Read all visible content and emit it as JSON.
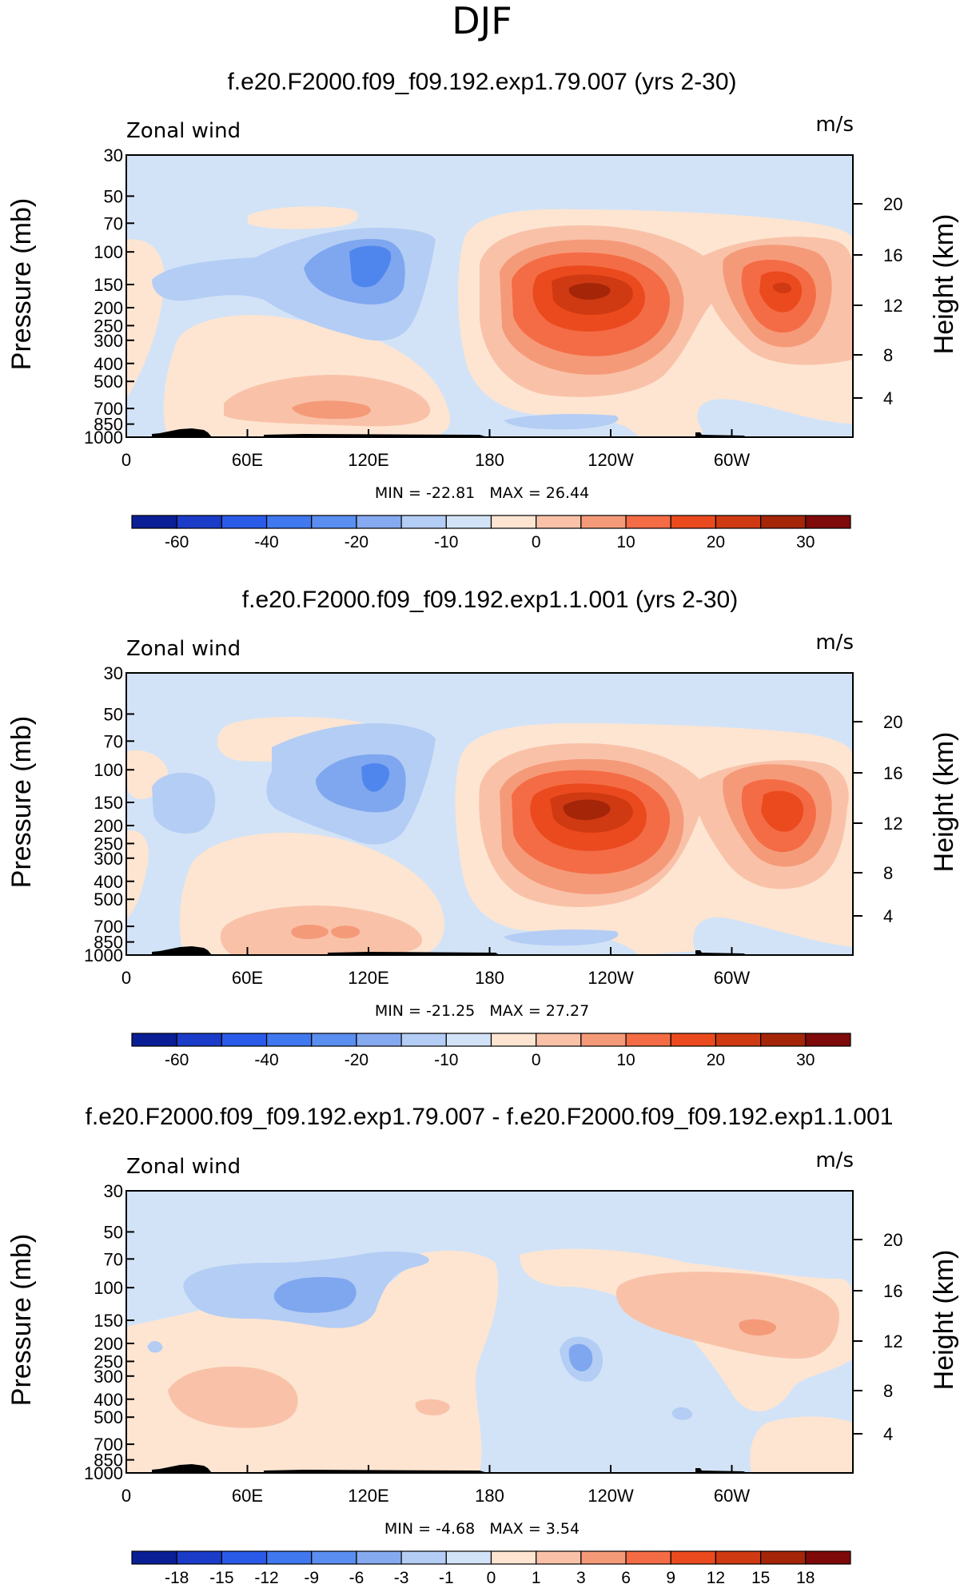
{
  "page_title": "DJF",
  "colors": {
    "blue3": "#b4cdf5",
    "blue4": "#7fa7ef",
    "blue5": "#4f86ee",
    "orange1": "#fde5d2",
    "orange2": "#f9c2a8",
    "orange3": "#f59a79",
    "orange4": "#f46c45",
    "orange5": "#eb4a1e",
    "red6": "#cf3a12",
    "red7": "#a52509",
    "background": "#d2e3f7",
    "topography": "#000000"
  },
  "chart_data": [
    {
      "type": "contour",
      "title": "f.e20.F2000.f09_f09.192.exp1.79.007 (yrs 2-30)",
      "variable_label": "Zonal wind",
      "units_label": "m/s",
      "ylabel_left": "Pressure (mb)",
      "ylabel_right": "Height (km)",
      "x_ticks": [
        "0",
        "60E",
        "120E",
        "180",
        "120W",
        "60W"
      ],
      "x_tick_values": [
        0,
        60,
        120,
        180,
        240,
        300
      ],
      "xlim": [
        0,
        360
      ],
      "y_ticks_pressure": [
        "30",
        "50",
        "70",
        "100",
        "150",
        "200",
        "250",
        "300",
        "400",
        "500",
        "700",
        "850",
        "1000"
      ],
      "y_tick_values_pressure": [
        30,
        50,
        70,
        100,
        150,
        200,
        250,
        300,
        400,
        500,
        700,
        850,
        1000
      ],
      "ylim_pressure": [
        1000,
        30
      ],
      "y_ticks_height": [
        "20",
        "16",
        "12",
        "8",
        "4"
      ],
      "min_max_text": "MIN = -22.81   MAX = 26.44",
      "colorbar_labels": [
        "-60",
        "-40",
        "-20",
        "-10",
        "0",
        "10",
        "20",
        "30"
      ],
      "colorbar_label_positions": [
        1,
        3,
        5,
        7,
        9,
        11,
        13,
        15
      ],
      "colorbar_colors": [
        "#0a1e96",
        "#1a3cc8",
        "#2a5be8",
        "#3f78ef",
        "#5a8ef0",
        "#86aaf0",
        "#b4cdf5",
        "#d2e3f7",
        "#fde5d2",
        "#f9c2a8",
        "#f59a79",
        "#f46c45",
        "#eb4a1e",
        "#cf3a12",
        "#a52509",
        "#7e0a0a"
      ]
    },
    {
      "type": "contour",
      "title": "f.e20.F2000.f09_f09.192.exp1.1.001 (yrs 2-30)",
      "variable_label": "Zonal wind",
      "units_label": "m/s",
      "ylabel_left": "Pressure (mb)",
      "ylabel_right": "Height (km)",
      "x_ticks": [
        "0",
        "60E",
        "120E",
        "180",
        "120W",
        "60W"
      ],
      "x_tick_values": [
        0,
        60,
        120,
        180,
        240,
        300
      ],
      "xlim": [
        0,
        360
      ],
      "y_ticks_pressure": [
        "30",
        "50",
        "70",
        "100",
        "150",
        "200",
        "250",
        "300",
        "400",
        "500",
        "700",
        "850",
        "1000"
      ],
      "y_tick_values_pressure": [
        30,
        50,
        70,
        100,
        150,
        200,
        250,
        300,
        400,
        500,
        700,
        850,
        1000
      ],
      "ylim_pressure": [
        1000,
        30
      ],
      "y_ticks_height": [
        "20",
        "16",
        "12",
        "8",
        "4"
      ],
      "min_max_text": "MIN = -21.25   MAX = 27.27",
      "colorbar_labels": [
        "-60",
        "-40",
        "-20",
        "-10",
        "0",
        "10",
        "20",
        "30"
      ],
      "colorbar_label_positions": [
        1,
        3,
        5,
        7,
        9,
        11,
        13,
        15
      ],
      "colorbar_colors": [
        "#0a1e96",
        "#1a3cc8",
        "#2a5be8",
        "#3f78ef",
        "#5a8ef0",
        "#86aaf0",
        "#b4cdf5",
        "#d2e3f7",
        "#fde5d2",
        "#f9c2a8",
        "#f59a79",
        "#f46c45",
        "#eb4a1e",
        "#cf3a12",
        "#a52509",
        "#7e0a0a"
      ]
    },
    {
      "type": "contour",
      "title": "f.e20.F2000.f09_f09.192.exp1.79.007 - f.e20.F2000.f09_f09.192.exp1.1.001",
      "variable_label": "Zonal wind",
      "units_label": "m/s",
      "ylabel_left": "Pressure (mb)",
      "ylabel_right": "Height (km)",
      "x_ticks": [
        "0",
        "60E",
        "120E",
        "180",
        "120W",
        "60W"
      ],
      "x_tick_values": [
        0,
        60,
        120,
        180,
        240,
        300
      ],
      "xlim": [
        0,
        360
      ],
      "y_ticks_pressure": [
        "30",
        "50",
        "70",
        "100",
        "150",
        "200",
        "250",
        "300",
        "400",
        "500",
        "700",
        "850",
        "1000"
      ],
      "y_tick_values_pressure": [
        30,
        50,
        70,
        100,
        150,
        200,
        250,
        300,
        400,
        500,
        700,
        850,
        1000
      ],
      "ylim_pressure": [
        1000,
        30
      ],
      "y_ticks_height": [
        "20",
        "16",
        "12",
        "8",
        "4"
      ],
      "min_max_text": "MIN = -4.68   MAX = 3.54",
      "colorbar_labels": [
        "-18",
        "-15",
        "-12",
        "-9",
        "-6",
        "-3",
        "-1",
        "0",
        "1",
        "3",
        "6",
        "9",
        "12",
        "15",
        "18"
      ],
      "colorbar_label_positions": [
        1,
        2,
        3,
        4,
        5,
        6,
        7,
        8,
        9,
        10,
        11,
        12,
        13,
        14,
        15
      ],
      "colorbar_colors": [
        "#0a1e96",
        "#1a3cc8",
        "#2a5be8",
        "#3f78ef",
        "#5a8ef0",
        "#86aaf0",
        "#b4cdf5",
        "#d2e3f7",
        "#fde5d2",
        "#f9c2a8",
        "#f59a79",
        "#f46c45",
        "#eb4a1e",
        "#cf3a12",
        "#a52509",
        "#7e0a0a"
      ]
    }
  ]
}
